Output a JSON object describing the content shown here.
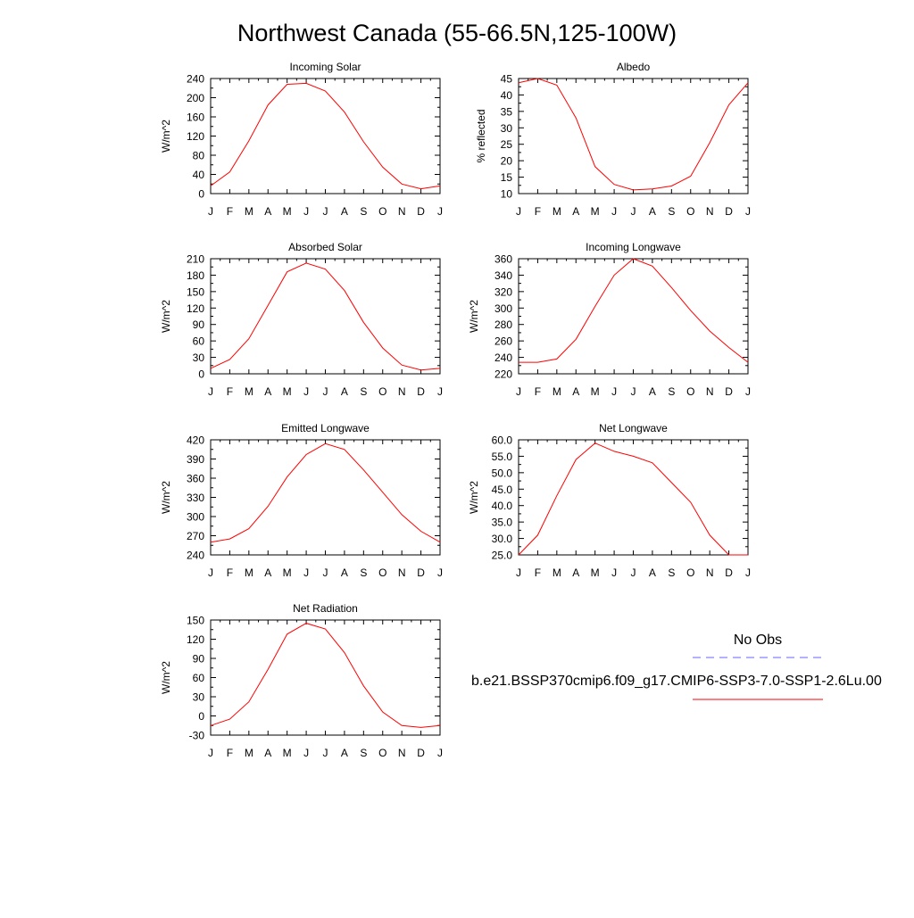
{
  "title": "Northwest Canada (55-66.5N,125-100W)",
  "colors": {
    "model_line": "#ff0000",
    "obs_line": "#6666ff",
    "axis": "#000000"
  },
  "legend": {
    "obs_label": "No Obs",
    "model_label": "b.e21.BSSP370cmip6.f09_g17.CMIP6-SSP3-7.0-SSP1-2.6Lu.00"
  },
  "chart_data": [
    {
      "type": "line",
      "title": "Incoming Solar",
      "ylabel": "W/m^2",
      "categories": [
        "J",
        "F",
        "M",
        "A",
        "M",
        "J",
        "J",
        "A",
        "S",
        "O",
        "N",
        "D",
        "J"
      ],
      "ylim": [
        0,
        240
      ],
      "yticks": [
        0,
        40,
        80,
        120,
        160,
        200,
        240
      ],
      "ytick_labels": [
        "0",
        "40",
        "80",
        "120",
        "160",
        "200",
        "240"
      ],
      "series": [
        {
          "values": [
            16,
            45,
            110,
            185,
            228,
            230,
            214,
            170,
            108,
            55,
            20,
            10,
            16
          ]
        }
      ],
      "grid": false
    },
    {
      "type": "line",
      "title": "Albedo",
      "ylabel": "% reflected",
      "categories": [
        "J",
        "F",
        "M",
        "A",
        "M",
        "J",
        "J",
        "A",
        "S",
        "O",
        "N",
        "D",
        "J"
      ],
      "ylim": [
        10,
        45
      ],
      "yticks": [
        10,
        15,
        20,
        25,
        30,
        35,
        40,
        45
      ],
      "ytick_labels": [
        "10",
        "15",
        "20",
        "25",
        "30",
        "35",
        "40",
        "45"
      ],
      "series": [
        {
          "values": [
            43.7,
            45,
            43,
            33,
            18.2,
            12.8,
            11.1,
            11.4,
            12.3,
            15.3,
            25.5,
            37,
            43.7
          ]
        }
      ],
      "grid": false
    },
    {
      "type": "line",
      "title": "Absorbed Solar",
      "ylabel": "W/m^2",
      "categories": [
        "J",
        "F",
        "M",
        "A",
        "M",
        "J",
        "J",
        "A",
        "S",
        "O",
        "N",
        "D",
        "J"
      ],
      "ylim": [
        0,
        210
      ],
      "yticks": [
        0,
        30,
        60,
        90,
        120,
        150,
        180,
        210
      ],
      "ytick_labels": [
        "0",
        "30",
        "60",
        "90",
        "120",
        "150",
        "180",
        "210"
      ],
      "series": [
        {
          "values": [
            10,
            26,
            64,
            125,
            186,
            202,
            191,
            152,
            94,
            47,
            16,
            7,
            10
          ]
        }
      ],
      "grid": false
    },
    {
      "type": "line",
      "title": "Incoming Longwave",
      "ylabel": "W/m^2",
      "categories": [
        "J",
        "F",
        "M",
        "A",
        "M",
        "J",
        "J",
        "A",
        "S",
        "O",
        "N",
        "D",
        "J"
      ],
      "ylim": [
        220,
        360
      ],
      "yticks": [
        220,
        240,
        260,
        280,
        300,
        320,
        340,
        360
      ],
      "ytick_labels": [
        "220",
        "240",
        "260",
        "280",
        "300",
        "320",
        "340",
        "360"
      ],
      "series": [
        {
          "values": [
            234,
            234,
            238,
            262,
            302,
            340,
            360,
            351,
            325,
            297,
            272,
            252,
            234
          ]
        }
      ],
      "grid": false
    },
    {
      "type": "line",
      "title": "Emitted Longwave",
      "ylabel": "W/m^2",
      "categories": [
        "J",
        "F",
        "M",
        "A",
        "M",
        "J",
        "J",
        "A",
        "S",
        "O",
        "N",
        "D",
        "J"
      ],
      "ylim": [
        240,
        420
      ],
      "yticks": [
        240,
        270,
        300,
        330,
        360,
        390,
        420
      ],
      "ytick_labels": [
        "240",
        "270",
        "300",
        "330",
        "360",
        "390",
        "420"
      ],
      "series": [
        {
          "values": [
            260,
            265,
            281,
            316,
            362,
            397,
            414,
            405,
            373,
            338,
            303,
            277,
            260
          ]
        }
      ],
      "grid": false
    },
    {
      "type": "line",
      "title": "Net Longwave",
      "ylabel": "W/m^2",
      "categories": [
        "J",
        "F",
        "M",
        "A",
        "M",
        "J",
        "J",
        "A",
        "S",
        "O",
        "N",
        "D",
        "J"
      ],
      "ylim": [
        25,
        60
      ],
      "yticks": [
        25,
        30,
        35,
        40,
        45,
        50,
        55,
        60
      ],
      "ytick_labels": [
        "25.0",
        "30.0",
        "35.0",
        "40.0",
        "45.0",
        "50.0",
        "55.0",
        "60.0"
      ],
      "series": [
        {
          "values": [
            25,
            31,
            43,
            54,
            59,
            56.5,
            55,
            53,
            47,
            41,
            31,
            25,
            25
          ]
        }
      ],
      "grid": false
    },
    {
      "type": "line",
      "title": "Net Radiation",
      "ylabel": "W/m^2",
      "categories": [
        "J",
        "F",
        "M",
        "A",
        "M",
        "J",
        "J",
        "A",
        "S",
        "O",
        "N",
        "D",
        "J"
      ],
      "ylim": [
        -30,
        150
      ],
      "yticks": [
        -30,
        0,
        30,
        60,
        90,
        120,
        150
      ],
      "ytick_labels": [
        "-30",
        "0",
        "30",
        "60",
        "90",
        "120",
        "150"
      ],
      "series": [
        {
          "values": [
            -15,
            -5,
            22,
            73,
            128,
            145,
            136,
            99,
            47,
            6,
            -15,
            -18,
            -15
          ]
        }
      ],
      "grid": false
    }
  ]
}
